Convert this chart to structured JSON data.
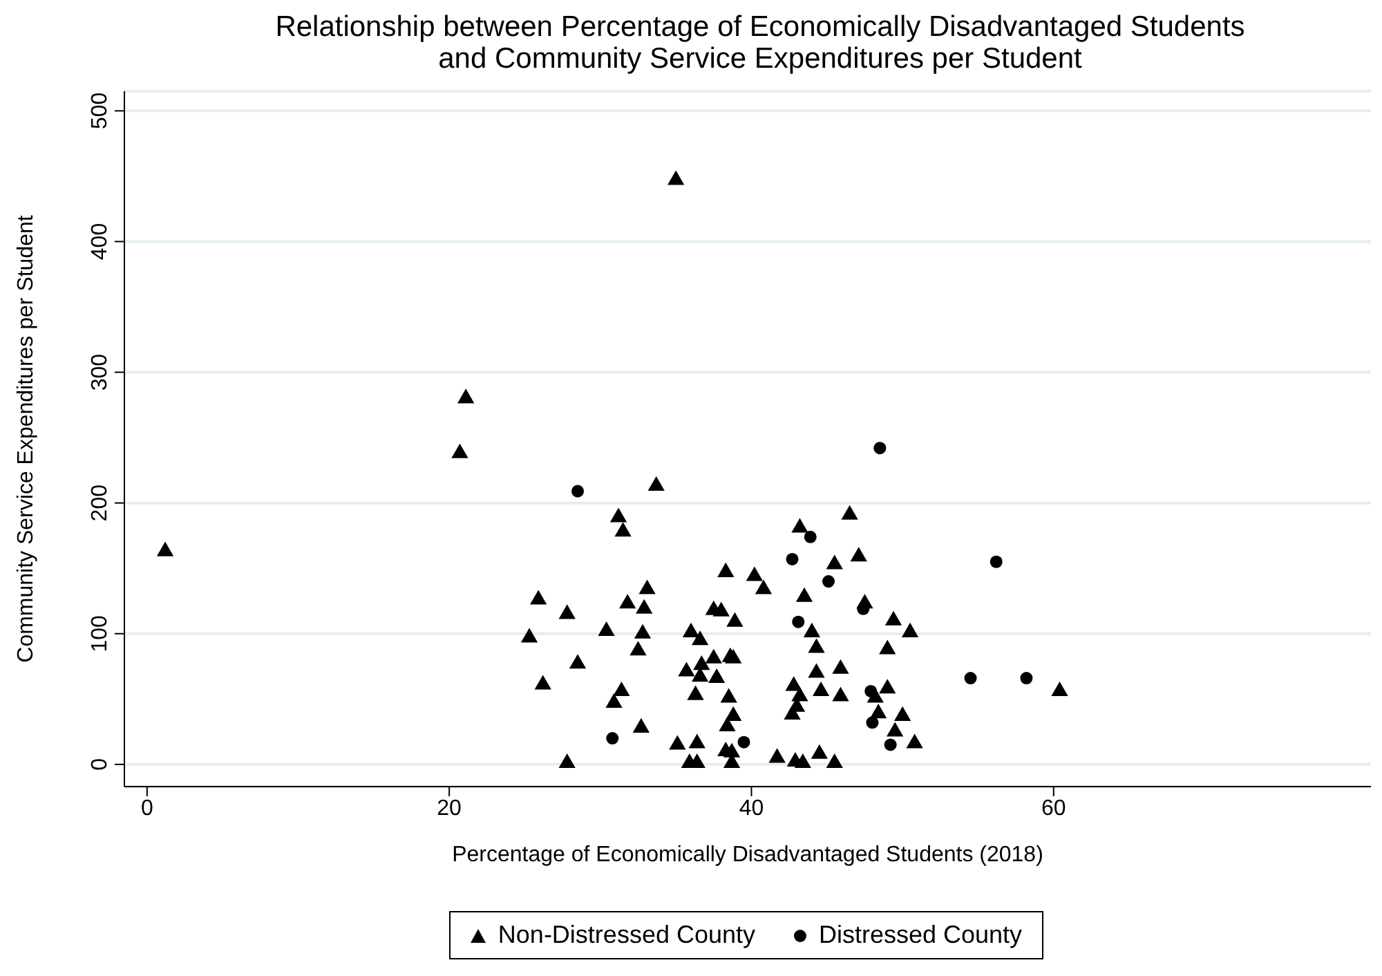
{
  "chart_data": {
    "type": "scatter",
    "title": "Relationship between Percentage of Economically Disadvantaged Students\nand Community Service Expenditures per Student",
    "xlabel": "Percentage of Economically Disadvantaged Students (2018)",
    "ylabel": "Community Service Expenditures per Student",
    "xlim": [
      -1.5,
      81
    ],
    "ylim": [
      -17,
      515
    ],
    "xticks": [
      0,
      20,
      40,
      60
    ],
    "yticks": [
      0,
      100,
      200,
      300,
      400,
      500
    ],
    "grid": "y",
    "legend": "bottom",
    "series": [
      {
        "name": "Non-Distressed County",
        "color": "#000000",
        "marker": "triangle",
        "x": [
          1.2,
          20.7,
          21.1,
          35.0,
          33.7,
          31.2,
          31.5,
          38.3,
          40.2,
          25.9,
          27.8,
          33.1,
          31.8,
          32.9,
          37.5,
          38.0,
          38.9,
          30.4,
          25.3,
          32.8,
          36.0,
          36.6,
          32.5,
          28.5,
          37.5,
          38.6,
          38.8,
          36.7,
          35.7,
          36.6,
          37.7,
          26.2,
          31.4,
          30.9,
          36.3,
          38.5,
          38.8,
          38.4,
          32.7,
          35.1,
          36.4,
          38.3,
          38.7,
          27.8,
          35.9,
          36.4,
          38.7,
          46.5,
          43.2,
          47.1,
          45.5,
          40.8,
          43.5,
          47.5,
          49.4,
          50.5,
          44.0,
          44.3,
          49.0,
          44.3,
          45.9,
          60.4,
          42.8,
          44.6,
          45.9,
          48.2,
          49.0,
          43.2,
          43.0,
          42.7,
          48.4,
          50.0,
          49.5,
          50.8,
          41.7,
          42.9,
          43.4,
          44.5,
          45.5
        ],
        "values": [
          163,
          238,
          280,
          447,
          213,
          189,
          178,
          147,
          144,
          126,
          115,
          134,
          123,
          119,
          118,
          117,
          109,
          102,
          97,
          100,
          101,
          95,
          87,
          77,
          81,
          82,
          81,
          76,
          71,
          67,
          66,
          61,
          56,
          47,
          53,
          51,
          37,
          29,
          28,
          15,
          16,
          10,
          9,
          1,
          1,
          1,
          1,
          191,
          181,
          159,
          153,
          134,
          128,
          123,
          110,
          101,
          101,
          89,
          88,
          70,
          73,
          56,
          60,
          56,
          52,
          51,
          58,
          52,
          44,
          38,
          39,
          37,
          25,
          16,
          5,
          2,
          1,
          8,
          1
        ]
      },
      {
        "name": "Distressed County",
        "color": "#000000",
        "marker": "circle",
        "x": [
          28.5,
          30.8,
          39.5,
          48.5,
          43.9,
          42.7,
          56.2,
          45.1,
          47.4,
          43.1,
          54.5,
          58.2,
          47.9,
          48.0,
          49.2
        ],
        "values": [
          209,
          20,
          17,
          242,
          174,
          157,
          155,
          140,
          119,
          109,
          66,
          66,
          56,
          32,
          15
        ]
      }
    ]
  }
}
